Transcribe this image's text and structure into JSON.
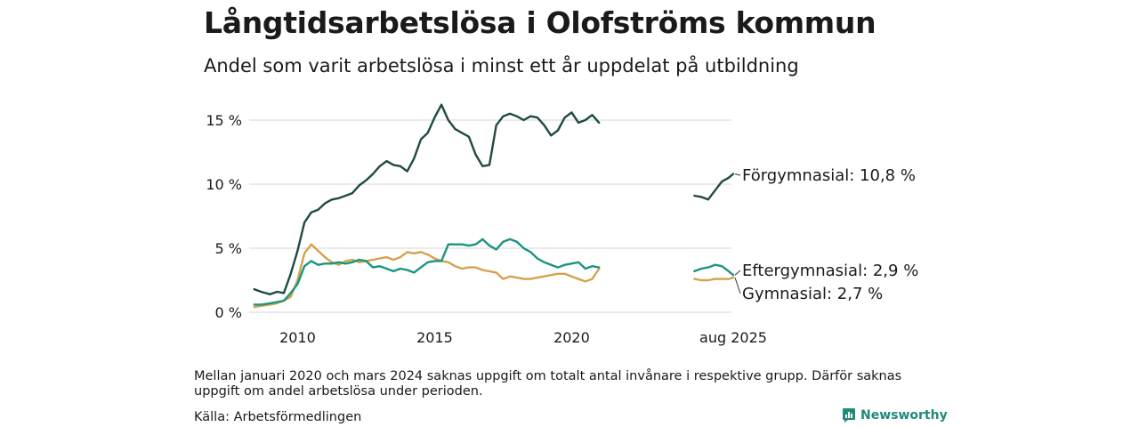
{
  "header": {
    "title": "Långtidsarbetslösa i Olofströms kommun",
    "subtitle": "Andel som varit arbetslösa i minst ett år uppdelat på utbildning"
  },
  "footer": {
    "note": "Mellan januari 2020 och mars 2024 saknas uppgift om totalt antal invånare i respektive grupp. Därför saknas uppgift om andel arbetslösa under perioden.",
    "source": "Källa: Arbetsförmedlingen",
    "brand": "Newsworthy"
  },
  "colors": {
    "forgymnasial": "#1f4a44",
    "eftergymnasial": "#1a9481",
    "gymnasial": "#d4a24c",
    "grid": "#dddddd",
    "brand": "#1f8a7a"
  },
  "chart_data": {
    "type": "line",
    "x_axis": {
      "ticks": [
        "2010",
        "2015",
        "2020",
        "aug 2025"
      ]
    },
    "y_axis": {
      "ticks": [
        "0 %",
        "5 %",
        "10 %",
        "15 %"
      ],
      "ylim": [
        0,
        16.5
      ],
      "unit": "%"
    },
    "grid": "horizontal",
    "series": [
      {
        "name": "Förgymnasial",
        "end_label": "Förgymnasial: 10,8 %",
        "color_key": "forgymnasial",
        "segments": [
          {
            "x": [
              "2008-06",
              "2008-09",
              "2009-01",
              "2009-04",
              "2009-07",
              "2009-10",
              "2010-01",
              "2010-04",
              "2010-07",
              "2010-10",
              "2011-01",
              "2011-04",
              "2011-07",
              "2011-10",
              "2012-01",
              "2012-04",
              "2012-07",
              "2012-10",
              "2013-01",
              "2013-04",
              "2013-07",
              "2013-10",
              "2014-01",
              "2014-04",
              "2014-07",
              "2014-10",
              "2015-01",
              "2015-04",
              "2015-07",
              "2015-10",
              "2016-01",
              "2016-04",
              "2016-07",
              "2016-10",
              "2017-01",
              "2017-04",
              "2017-07",
              "2017-10",
              "2018-01",
              "2018-04",
              "2018-07",
              "2018-10",
              "2019-01",
              "2019-04",
              "2019-07",
              "2019-10",
              "2020-01",
              "2020-04",
              "2020-07",
              "2020-10",
              "2021-01"
            ],
            "values": [
              1.8,
              1.6,
              1.4,
              1.6,
              1.5,
              3.0,
              4.8,
              7.0,
              7.8,
              8.0,
              8.5,
              8.8,
              8.9,
              9.1,
              9.3,
              9.9,
              10.3,
              10.8,
              11.4,
              11.8,
              11.5,
              11.4,
              11.0,
              12.0,
              13.5,
              14.0,
              15.2,
              16.2,
              15.0,
              14.3,
              14.0,
              13.7,
              12.3,
              11.4,
              11.5,
              14.6,
              15.3,
              15.5,
              15.3,
              15.0,
              15.3,
              15.2,
              14.6,
              13.8,
              14.2,
              15.2,
              15.6,
              14.8,
              15.0,
              15.4,
              14.8
            ]
          },
          {
            "x": [
              "2024-03",
              "2024-06",
              "2024-09",
              "2024-12",
              "2025-03",
              "2025-06",
              "2025-08"
            ],
            "values": [
              9.1,
              9.0,
              8.8,
              9.5,
              10.2,
              10.5,
              10.8
            ]
          }
        ]
      },
      {
        "name": "Eftergymnasial",
        "end_label": "Eftergymnasial:  2,9 %",
        "color_key": "eftergymnasial",
        "segments": [
          {
            "x": [
              "2008-06",
              "2008-09",
              "2009-01",
              "2009-04",
              "2009-07",
              "2009-10",
              "2010-01",
              "2010-04",
              "2010-07",
              "2010-10",
              "2011-01",
              "2011-04",
              "2011-07",
              "2011-10",
              "2012-01",
              "2012-04",
              "2012-07",
              "2012-10",
              "2013-01",
              "2013-04",
              "2013-07",
              "2013-10",
              "2014-01",
              "2014-04",
              "2014-07",
              "2014-10",
              "2015-01",
              "2015-04",
              "2015-07",
              "2015-10",
              "2016-01",
              "2016-04",
              "2016-07",
              "2016-10",
              "2017-01",
              "2017-04",
              "2017-07",
              "2017-10",
              "2018-01",
              "2018-04",
              "2018-07",
              "2018-10",
              "2019-01",
              "2019-04",
              "2019-07",
              "2019-10",
              "2020-01",
              "2020-04",
              "2020-07",
              "2020-10",
              "2021-01"
            ],
            "values": [
              0.6,
              0.6,
              0.7,
              0.8,
              0.9,
              1.5,
              2.2,
              3.6,
              4.0,
              3.7,
              3.8,
              3.8,
              3.9,
              3.8,
              3.9,
              4.1,
              4.0,
              3.5,
              3.6,
              3.4,
              3.2,
              3.4,
              3.3,
              3.1,
              3.5,
              3.9,
              4.0,
              4.0,
              5.3,
              5.3,
              5.3,
              5.2,
              5.3,
              5.7,
              5.2,
              4.9,
              5.5,
              5.7,
              5.5,
              5.0,
              4.7,
              4.2,
              3.9,
              3.7,
              3.5,
              3.7,
              3.8,
              3.9,
              3.4,
              3.6,
              3.5
            ]
          },
          {
            "x": [
              "2024-03",
              "2024-06",
              "2024-09",
              "2024-12",
              "2025-03",
              "2025-06",
              "2025-08"
            ],
            "values": [
              3.2,
              3.4,
              3.5,
              3.7,
              3.6,
              3.2,
              2.9
            ]
          }
        ]
      },
      {
        "name": "Gymnasial",
        "end_label": "Gymnasial:  2,7 %",
        "color_key": "gymnasial",
        "segments": [
          {
            "x": [
              "2008-06",
              "2008-09",
              "2009-01",
              "2009-04",
              "2009-07",
              "2009-10",
              "2010-01",
              "2010-04",
              "2010-07",
              "2010-10",
              "2011-01",
              "2011-04",
              "2011-07",
              "2011-10",
              "2012-01",
              "2012-04",
              "2012-07",
              "2012-10",
              "2013-01",
              "2013-04",
              "2013-07",
              "2013-10",
              "2014-01",
              "2014-04",
              "2014-07",
              "2014-10",
              "2015-01",
              "2015-04",
              "2015-07",
              "2015-10",
              "2016-01",
              "2016-04",
              "2016-07",
              "2016-10",
              "2017-01",
              "2017-04",
              "2017-07",
              "2017-10",
              "2018-01",
              "2018-04",
              "2018-07",
              "2018-10",
              "2019-01",
              "2019-04",
              "2019-07",
              "2019-10",
              "2020-01",
              "2020-04",
              "2020-07",
              "2020-10",
              "2021-01"
            ],
            "values": [
              0.4,
              0.5,
              0.6,
              0.7,
              0.9,
              1.2,
              2.5,
              4.6,
              5.3,
              4.8,
              4.3,
              3.9,
              3.7,
              4.0,
              4.1,
              3.9,
              4.0,
              4.1,
              4.2,
              4.3,
              4.1,
              4.3,
              4.7,
              4.6,
              4.7,
              4.5,
              4.2,
              4.0,
              3.9,
              3.6,
              3.4,
              3.5,
              3.5,
              3.3,
              3.2,
              3.1,
              2.6,
              2.8,
              2.7,
              2.6,
              2.6,
              2.7,
              2.8,
              2.9,
              3.0,
              3.0,
              2.8,
              2.6,
              2.4,
              2.6,
              3.4
            ]
          },
          {
            "x": [
              "2024-03",
              "2024-06",
              "2024-09",
              "2024-12",
              "2025-03",
              "2025-06",
              "2025-08"
            ],
            "values": [
              2.6,
              2.5,
              2.5,
              2.6,
              2.6,
              2.6,
              2.7
            ]
          }
        ]
      }
    ]
  }
}
